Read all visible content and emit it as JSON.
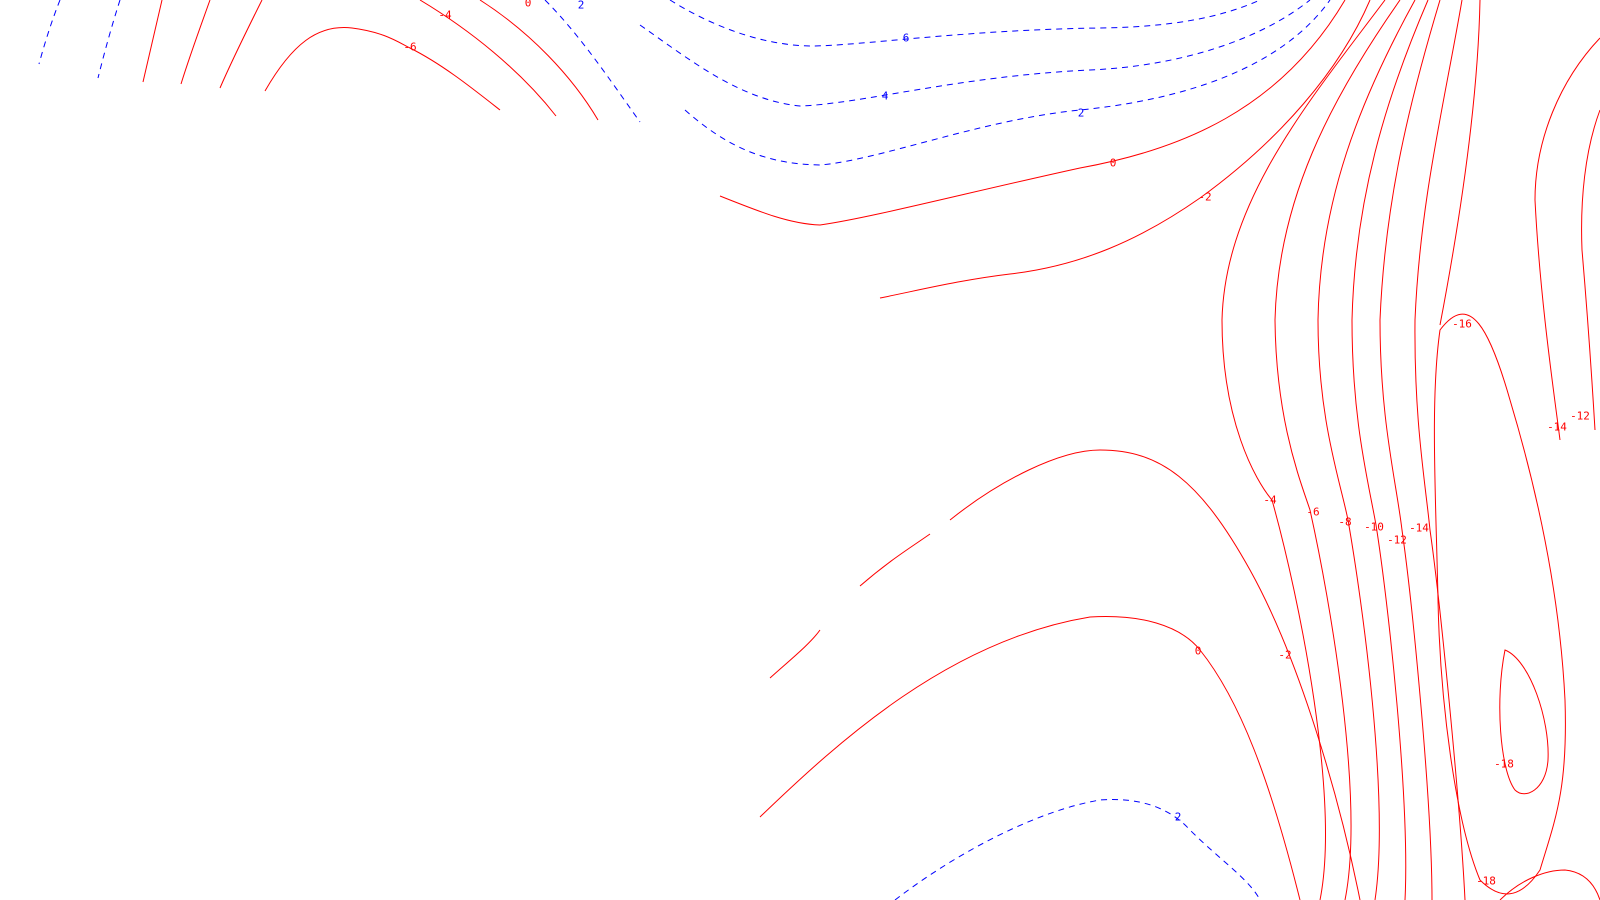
{
  "chart_data": {
    "type": "contour",
    "title": "",
    "xlabel": "",
    "ylabel": "",
    "grid": false,
    "legend": false,
    "colors": {
      "positive": "#0000ff",
      "negative": "#ff0000",
      "zero": "#ff0000"
    },
    "line_styles": {
      "positive": "dashed",
      "negative": "solid",
      "zero": "solid"
    },
    "contour_levels": [
      "6",
      "4",
      "2",
      "0",
      "-2",
      "-4",
      "-6",
      "-8",
      "-10",
      "-12",
      "-14",
      "-16",
      "-18"
    ],
    "contour_labels": [
      "-4",
      "-6",
      "0",
      "2",
      "6",
      "4",
      "2",
      "0",
      "-2",
      "-16",
      "-14",
      "-12",
      "-4",
      "-6",
      "-8",
      "-10",
      "-12",
      "-14",
      "0",
      "-2",
      "-18",
      "2",
      "-18"
    ]
  }
}
